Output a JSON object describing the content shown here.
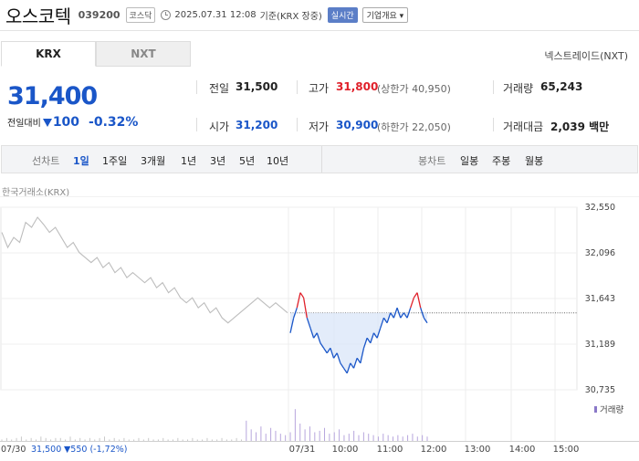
{
  "header": {
    "stock_name": "오스코텍",
    "stock_code": "039200",
    "market_badge": "코스닥",
    "timestamp": "2025.07.31 12:08",
    "basis": "기준(KRX 장중)",
    "realtime_badge": "실시간",
    "company_button": "기업개요 ▾"
  },
  "market_tabs": [
    {
      "label": "KRX",
      "active": true
    },
    {
      "label": "NXT",
      "active": false
    }
  ],
  "nxt_link": "넥스트레이드(NXT)",
  "price": {
    "current": "31,400",
    "change_label": "전일대비",
    "change_value": "100",
    "change_pct": "-0.32%"
  },
  "stats": {
    "prev_close_label": "전일",
    "prev_close": "31,500",
    "open_label": "시가",
    "open": "31,200",
    "high_label": "고가",
    "high": "31,800",
    "upper_limit": "(상한가 40,950)",
    "low_label": "저가",
    "low": "30,900",
    "lower_limit": "(하한가 22,050)",
    "volume_label": "거래량",
    "volume": "65,243",
    "amount_label": "거래대금",
    "amount": "2,039 백만"
  },
  "periods": {
    "line_chart_label": "선차트",
    "line_items": [
      "1일",
      "1주일",
      "3개월",
      "1년",
      "3년",
      "5년",
      "10년"
    ],
    "active_item": "1일",
    "candle_chart_label": "봉차트",
    "candle_items": [
      "일봉",
      "주봉",
      "월봉"
    ]
  },
  "exchange_label": "한국거래소(KRX)",
  "colors": {
    "up": "#e0202a",
    "down": "#1a56c8",
    "prev_day": "#bdbdbd"
  },
  "chart_data": {
    "type": "line",
    "y_ticks": [
      "32,550",
      "32,096",
      "31,643",
      "31,189",
      "30,735"
    ],
    "ylim": [
      30735,
      32550
    ],
    "x_ticks": [
      "07/30",
      "07/31",
      "10:00",
      "11:00",
      "12:00",
      "13:00",
      "14:00",
      "15:00"
    ],
    "reference_price": 31500,
    "series": [
      {
        "values": [
          32300,
          32150,
          32250,
          32200,
          32400,
          32350,
          32450,
          32380,
          32300,
          32350,
          32250,
          32150,
          32200,
          32100,
          32050,
          32000,
          32050,
          31950,
          32000,
          31900,
          31950,
          31850,
          31900,
          31850,
          31800,
          31850,
          31750,
          31800,
          31700,
          31750,
          31650,
          31600,
          31650,
          31550,
          31600,
          31500,
          31550,
          31450,
          31400,
          31450,
          31500,
          31550,
          31600,
          31650,
          31600,
          31550,
          31600,
          31550,
          31500
        ]
      },
      {
        "values": [
          31300,
          31450,
          31550,
          31700,
          31650,
          31450,
          31350,
          31250,
          31300,
          31200,
          31150,
          31100,
          31150,
          31050,
          31100,
          31000,
          30950,
          30900,
          31000,
          30950,
          31050,
          31000,
          31150,
          31250,
          31200,
          31300,
          31250,
          31350,
          31450,
          31400,
          31500,
          31450,
          31550,
          31450,
          31500,
          31450,
          31550,
          31650,
          31700,
          31550,
          31450,
          31400
        ]
      }
    ],
    "volume_label": "거래량",
    "volume": [
      1,
      2,
      1,
      2,
      3,
      1,
      2,
      1,
      3,
      2,
      1,
      2,
      2,
      1,
      3,
      1,
      2,
      1,
      2,
      1,
      2,
      3,
      1,
      2,
      1,
      2,
      1,
      1,
      2,
      1,
      2,
      1,
      1,
      2,
      1,
      1,
      2,
      1,
      1,
      2,
      1,
      1,
      2,
      1,
      1,
      2,
      1,
      1,
      2,
      1,
      14,
      8,
      6,
      10,
      5,
      9,
      7,
      5,
      4,
      6,
      22,
      12,
      8,
      10,
      6,
      7,
      9,
      5,
      6,
      8,
      4,
      5,
      7,
      4,
      6,
      5,
      4,
      3,
      5,
      4,
      3,
      4,
      3,
      4,
      5,
      3,
      4,
      3
    ],
    "footer_date": "07/30",
    "footer_price": "31,500",
    "footer_change": "▼550 (-1,72%)"
  }
}
